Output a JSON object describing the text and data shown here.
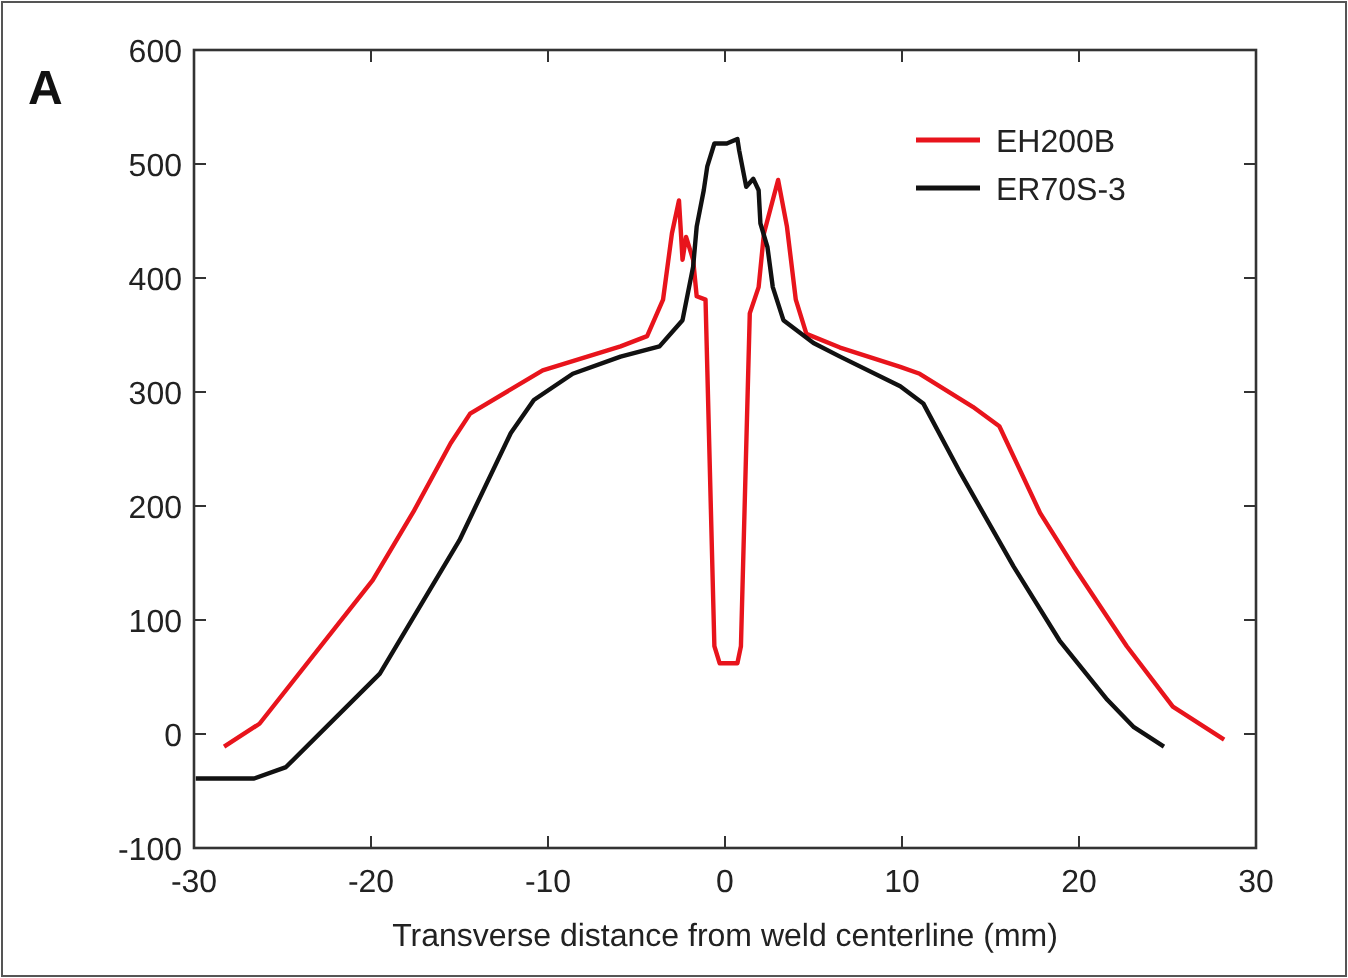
{
  "chart_data": {
    "type": "line",
    "xlabel": "Transverse distance from weld centerline (mm)",
    "annotations": [
      "A"
    ],
    "xlim": [
      -30,
      30
    ],
    "xticks": [
      -30,
      -20,
      -10,
      0,
      10,
      20,
      30
    ],
    "ylim": [
      -100,
      600
    ],
    "yticks": [
      -100,
      0,
      100,
      200,
      300,
      400,
      500,
      600
    ],
    "legend": "top right",
    "grid": false,
    "line_style": "solid",
    "series": [
      {
        "name": "EH200B",
        "color": "#e8141c",
        "x": [
          -28.3,
          -26.3,
          -19.9,
          -17.6,
          -15.5,
          -14.4,
          -10.3,
          -5.9,
          -4.4,
          -3.5,
          -3.0,
          -2.6,
          -2.4,
          -2.2,
          -1.8,
          -1.6,
          -1.1,
          -0.6,
          -0.3,
          0.7,
          0.9,
          1.4,
          1.9,
          2.2,
          3.0,
          3.5,
          4.0,
          4.6,
          6.5,
          9.9,
          11.0,
          14.0,
          15.5,
          17.8,
          19.7,
          22.7,
          25.3,
          28.2
        ],
        "values": [
          -11,
          9,
          135,
          195,
          255,
          281,
          319,
          340,
          349,
          381,
          439,
          468,
          416,
          436,
          416,
          384,
          381,
          77,
          62,
          62,
          77,
          369,
          392,
          439,
          486,
          445,
          381,
          351,
          339,
          322,
          316,
          287,
          270,
          194,
          147,
          77,
          24,
          -5
        ]
      },
      {
        "name": "ER70S-3",
        "color": "#111111",
        "x": [
          -29.9,
          -26.6,
          -24.8,
          -19.5,
          -15,
          -12.1,
          -10.8,
          -8.6,
          -5.9,
          -3.7,
          -2.4,
          -1.8,
          -1.6,
          -1.2,
          -1.0,
          -0.6,
          0.1,
          0.7,
          0.8,
          1.2,
          1.6,
          1.9,
          2.0,
          2.4,
          2.7,
          3.3,
          5.0,
          6.5,
          9.9,
          11.2,
          13.3,
          16.3,
          18.9,
          21.6,
          23.1,
          24.8
        ],
        "values": [
          -39,
          -39,
          -29,
          53,
          170,
          264,
          293,
          316,
          331,
          340,
          363,
          410,
          445,
          477,
          498,
          518,
          518,
          522,
          512,
          480,
          487,
          477,
          448,
          427,
          392,
          363,
          343,
          331,
          305,
          290,
          229,
          147,
          82,
          30,
          6,
          -11
        ]
      }
    ]
  }
}
